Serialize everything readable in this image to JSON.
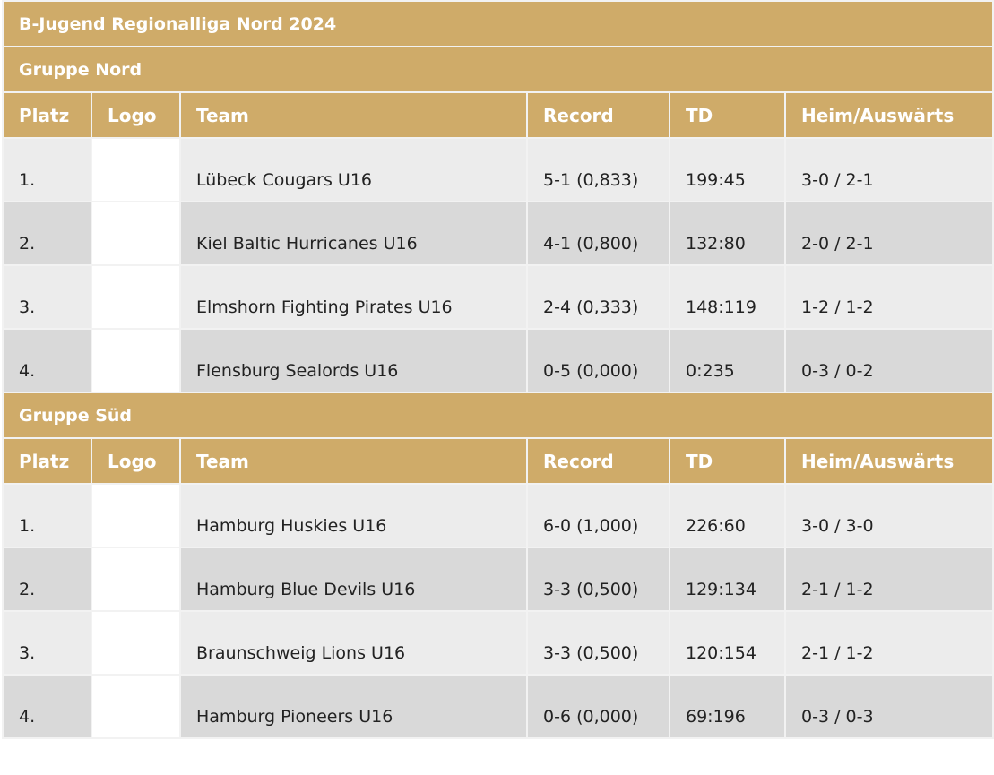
{
  "title": "B-Jugend Regionalliga Nord 2024",
  "columns": [
    "Platz",
    "Logo",
    "Team",
    "Record",
    "TD",
    "Heim/Auswärts"
  ],
  "groups": [
    {
      "name": "Gruppe Nord",
      "rows": [
        {
          "platz": "1.",
          "team": "Lübeck Cougars U16",
          "record": "5-1 (0,833)",
          "td": "199:45",
          "ha": "3-0 / 2-1"
        },
        {
          "platz": "2.",
          "team": "Kiel Baltic Hurricanes U16",
          "record": "4-1 (0,800)",
          "td": "132:80",
          "ha": "2-0 / 2-1"
        },
        {
          "platz": "3.",
          "team": "Elmshorn Fighting Pirates U16",
          "record": "2-4 (0,333)",
          "td": "148:119",
          "ha": "1-2 / 1-2"
        },
        {
          "platz": "4.",
          "team": "Flensburg Sealords U16",
          "record": "0-5 (0,000)",
          "td": "0:235",
          "ha": "0-3 / 0-2"
        }
      ]
    },
    {
      "name": "Gruppe Süd",
      "rows": [
        {
          "platz": "1.",
          "team": "Hamburg Huskies U16",
          "record": "6-0 (1,000)",
          "td": "226:60",
          "ha": "3-0 / 3-0"
        },
        {
          "platz": "2.",
          "team": "Hamburg Blue Devils U16",
          "record": "3-3 (0,500)",
          "td": "129:134",
          "ha": "2-1 / 1-2"
        },
        {
          "platz": "3.",
          "team": "Braunschweig Lions U16",
          "record": "3-3 (0,500)",
          "td": "120:154",
          "ha": "2-1 / 1-2"
        },
        {
          "platz": "4.",
          "team": "Hamburg Pioneers U16",
          "record": "0-6 (0,000)",
          "td": "69:196",
          "ha": "0-3 / 0-3"
        }
      ]
    }
  ],
  "colors": {
    "header_gold": "#cfab69",
    "row_light": "#ececec",
    "row_dark": "#d9d9d9"
  }
}
